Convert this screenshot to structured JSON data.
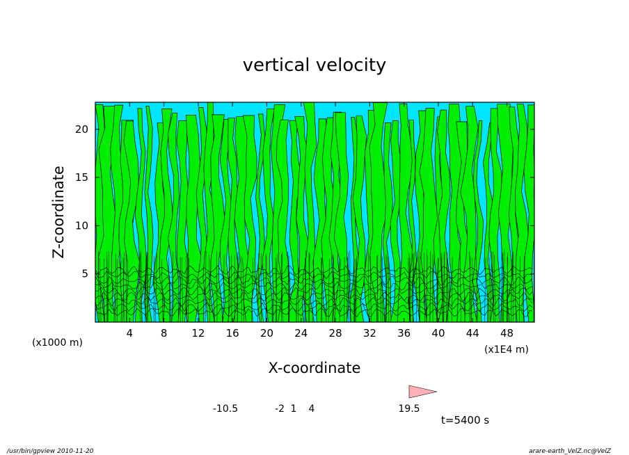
{
  "chart_data": {
    "type": "heatmap",
    "title": "vertical velocity",
    "xlabel": "X-coordinate",
    "ylabel": "Z-coordinate",
    "x_unit_left": "(x1000 m)",
    "x_unit_right": "(x1E4 m)",
    "x_ticks": [
      4,
      8,
      12,
      16,
      20,
      24,
      28,
      32,
      36,
      40,
      44,
      48
    ],
    "y_ticks": [
      5,
      10,
      15,
      20
    ],
    "xlim": [
      0,
      51.2
    ],
    "ylim": [
      0,
      22.8
    ],
    "grid": false,
    "colors": {
      "background_field": "#00e5ff",
      "updraft_field": "#00ee00",
      "contour": "#000000"
    },
    "colorbar": {
      "levels": [
        -10.5,
        -2,
        1,
        4,
        19.5
      ],
      "tick_labels": [
        "-10.5",
        "-2",
        "1",
        "4",
        "19.5"
      ],
      "colors": [
        "#e000b0",
        "#8a10c0",
        "#1010c8",
        "#1070ff",
        "#00d8ff",
        "#10e060",
        "#c0f000",
        "#ffe800",
        "#ffb000",
        "#ff7000",
        "#ff2020",
        "#ff8080",
        "#ffb0b8"
      ]
    },
    "time_label": "t=5400 s"
  },
  "footer": {
    "left": "/usr/bin/gpview   2010-11-20",
    "right": "arare-earth_VelZ.nc@VelZ"
  }
}
